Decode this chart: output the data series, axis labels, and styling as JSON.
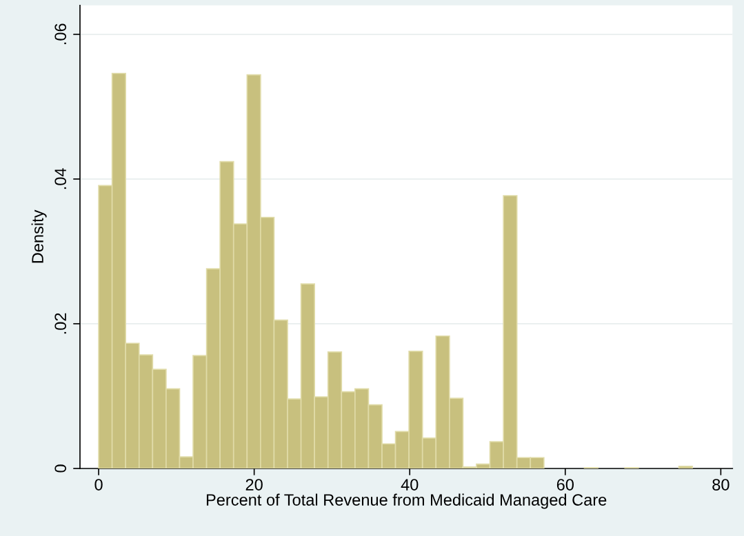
{
  "chart_data": {
    "type": "histogram",
    "xlabel": "Percent of Total Revenue from Medicaid Managed Care",
    "ylabel": "Density",
    "bins": [
      0,
      1.735,
      3.47,
      5.205,
      6.94,
      8.675,
      10.41,
      12.145,
      13.88,
      15.615,
      17.35,
      19.085,
      20.82,
      22.555,
      24.29,
      26.025,
      27.76,
      29.495,
      31.23,
      32.965,
      34.7,
      36.435,
      38.17,
      39.905,
      41.64,
      43.375,
      45.11,
      46.845,
      48.58,
      50.315,
      52.05,
      53.785,
      55.52,
      57.255,
      58.99,
      60.725,
      62.46,
      64.195,
      65.93,
      67.665,
      69.4,
      71.135,
      72.87,
      74.605,
      76.34
    ],
    "values": [
      0.0391,
      0.0546,
      0.0173,
      0.0157,
      0.0137,
      0.011,
      0.0016,
      0.0156,
      0.0276,
      0.0424,
      0.0338,
      0.0544,
      0.0347,
      0.0205,
      0.0096,
      0.0255,
      0.0099,
      0.0161,
      0.0106,
      0.011,
      0.0088,
      0.0034,
      0.0051,
      0.0162,
      0.0042,
      0.0183,
      0.0097,
      0.0002,
      0.0006,
      0.0037,
      0.0377,
      0.0015,
      0.0015,
      0,
      0,
      0,
      0.0001,
      0,
      0,
      0.0001,
      0,
      0,
      0,
      0.0003
    ],
    "color": "#c8c07e",
    "xlim": [
      -2.4,
      81.5
    ],
    "ylim": [
      0,
      0.064
    ],
    "xticks": [
      0,
      20,
      40,
      60,
      80
    ],
    "yticks": [
      {
        "value": 0,
        "label": "0"
      },
      {
        "value": 0.02,
        "label": ".02"
      },
      {
        "value": 0.04,
        "label": ".04"
      },
      {
        "value": 0.06,
        "label": ".06"
      }
    ],
    "grid": "y"
  }
}
